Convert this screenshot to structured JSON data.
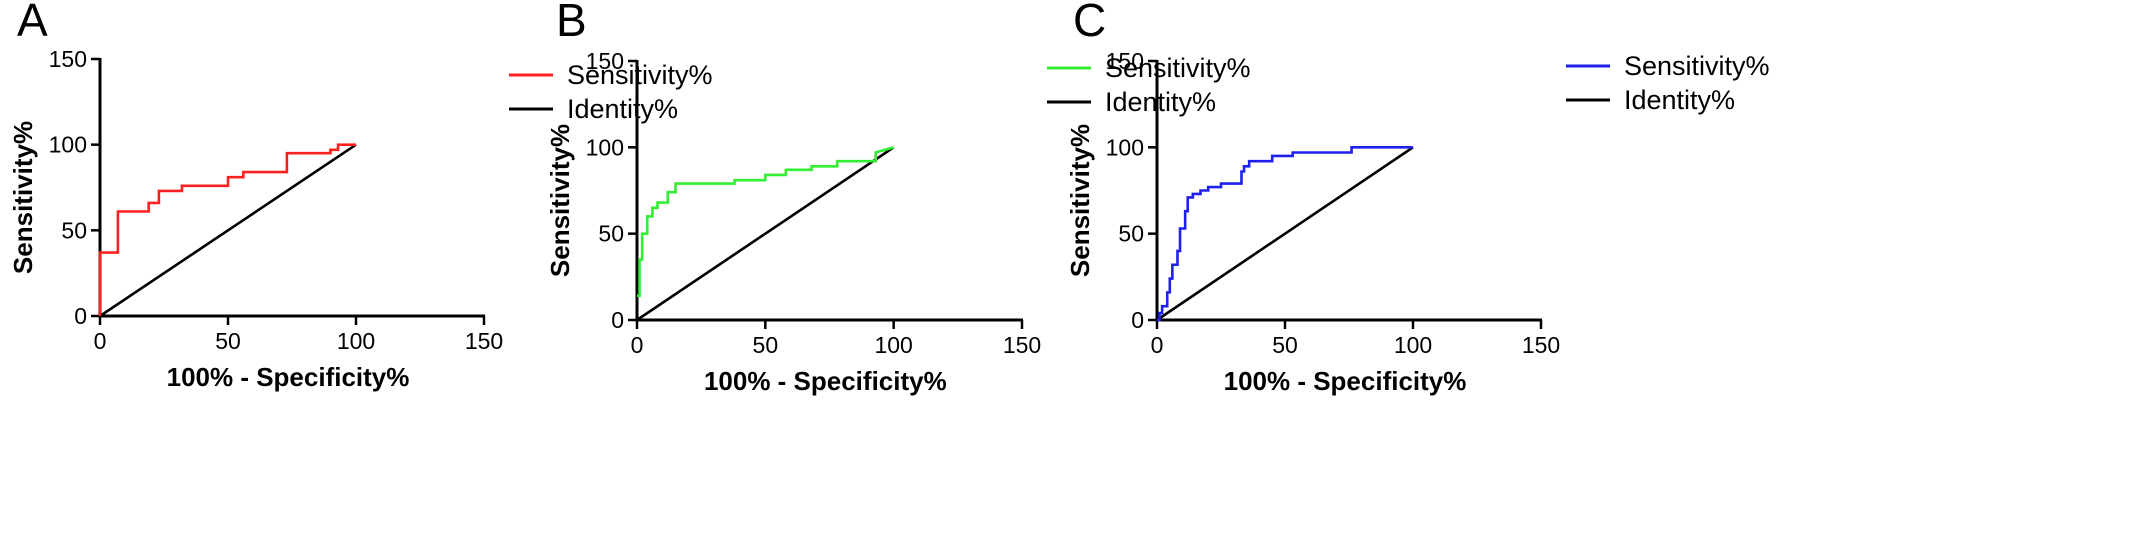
{
  "chart_data": [
    {
      "panel": "A",
      "type": "line",
      "xlabel": "100% - Specificity%",
      "ylabel": "Sensitivity%",
      "xlim": [
        0,
        150
      ],
      "ylim": [
        0,
        150
      ],
      "xticks": [
        0,
        50,
        100,
        150
      ],
      "yticks": [
        0,
        50,
        100,
        150
      ],
      "legend_position": "top-right",
      "grid": false,
      "series": [
        {
          "name": "Sensitivity%",
          "color": "#ff2020",
          "step": true,
          "x": [
            0,
            0,
            1,
            7,
            7,
            19,
            19,
            23,
            23,
            32,
            32,
            50,
            50,
            56,
            56,
            73,
            73,
            90,
            90,
            93,
            93,
            100
          ],
          "y": [
            0,
            37,
            37,
            37,
            61,
            61,
            66,
            66,
            73,
            73,
            76,
            76,
            81,
            81,
            84,
            84,
            95,
            95,
            97,
            97,
            100,
            100
          ]
        },
        {
          "name": "Identity%",
          "color": "#000000",
          "step": false,
          "x": [
            0,
            100
          ],
          "y": [
            0,
            100
          ]
        }
      ]
    },
    {
      "panel": "B",
      "type": "line",
      "xlabel": "100% - Specificity%",
      "ylabel": "Sensitivity%",
      "xlim": [
        0,
        150
      ],
      "ylim": [
        0,
        150
      ],
      "xticks": [
        0,
        50,
        100,
        150
      ],
      "yticks": [
        0,
        50,
        100,
        150
      ],
      "legend_position": "top-right",
      "grid": false,
      "series": [
        {
          "name": "Sensitivity%",
          "color": "#33ee33",
          "step": true,
          "x": [
            0,
            1,
            1,
            2,
            2,
            4,
            4,
            6,
            6,
            8,
            8,
            12,
            12,
            15,
            15,
            38,
            38,
            50,
            50,
            58,
            58,
            68,
            68,
            78,
            78,
            93,
            93,
            100
          ],
          "y": [
            14,
            14,
            35,
            35,
            50,
            50,
            60,
            60,
            65,
            65,
            68,
            68,
            74,
            74,
            79,
            79,
            81,
            81,
            84,
            84,
            87,
            87,
            89,
            89,
            92,
            92,
            97,
            100
          ]
        },
        {
          "name": "Identity%",
          "color": "#000000",
          "step": false,
          "x": [
            0,
            100
          ],
          "y": [
            0,
            100
          ]
        }
      ]
    },
    {
      "panel": "C",
      "type": "line",
      "xlabel": "100% - Specificity%",
      "ylabel": "Sensitivity%",
      "xlim": [
        0,
        150
      ],
      "ylim": [
        0,
        150
      ],
      "xticks": [
        0,
        50,
        100,
        150
      ],
      "yticks": [
        0,
        50,
        100,
        150
      ],
      "legend_position": "top-right",
      "grid": false,
      "series": [
        {
          "name": "Sensitivity%",
          "color": "#2020ee",
          "step": true,
          "x": [
            0,
            1,
            1,
            2,
            2,
            4,
            4,
            5,
            5,
            6,
            6,
            8,
            8,
            9,
            9,
            11,
            11,
            12,
            12,
            14,
            14,
            17,
            17,
            20,
            20,
            25,
            25,
            33,
            33,
            34,
            34,
            36,
            36,
            45,
            45,
            53,
            53,
            76,
            76,
            100
          ],
          "y": [
            0,
            0,
            4,
            4,
            8,
            8,
            16,
            16,
            24,
            24,
            32,
            32,
            40,
            40,
            53,
            53,
            63,
            63,
            71,
            71,
            73,
            73,
            75,
            75,
            77,
            77,
            79,
            79,
            86,
            86,
            89,
            89,
            92,
            92,
            95,
            95,
            97,
            97,
            100,
            100
          ]
        },
        {
          "name": "Identity%",
          "color": "#000000",
          "step": false,
          "x": [
            0,
            100
          ],
          "y": [
            0,
            100
          ]
        }
      ]
    }
  ]
}
